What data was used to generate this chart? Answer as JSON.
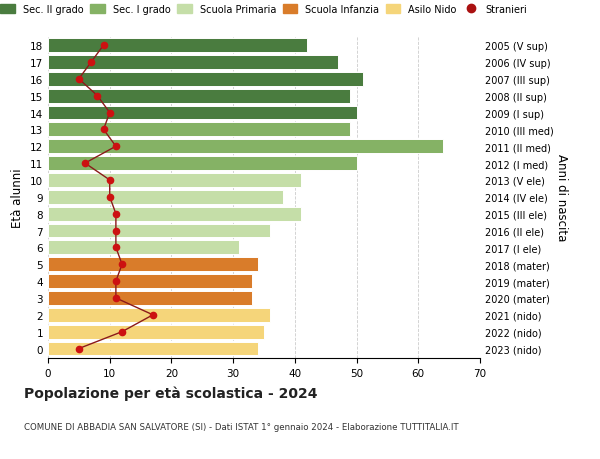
{
  "ages": [
    18,
    17,
    16,
    15,
    14,
    13,
    12,
    11,
    10,
    9,
    8,
    7,
    6,
    5,
    4,
    3,
    2,
    1,
    0
  ],
  "bar_values": [
    42,
    47,
    51,
    49,
    50,
    49,
    64,
    50,
    41,
    38,
    41,
    36,
    31,
    34,
    33,
    33,
    36,
    35,
    34
  ],
  "bar_colors": [
    "#4a7c3f",
    "#4a7c3f",
    "#4a7c3f",
    "#4a7c3f",
    "#4a7c3f",
    "#85b265",
    "#85b265",
    "#85b265",
    "#c5dea8",
    "#c5dea8",
    "#c5dea8",
    "#c5dea8",
    "#c5dea8",
    "#d97c2a",
    "#d97c2a",
    "#d97c2a",
    "#f5d57a",
    "#f5d57a",
    "#f5d57a"
  ],
  "stranieri_values": [
    9,
    7,
    5,
    8,
    10,
    9,
    11,
    6,
    10,
    10,
    11,
    11,
    11,
    12,
    11,
    11,
    17,
    12,
    5
  ],
  "right_labels": [
    "2005 (V sup)",
    "2006 (IV sup)",
    "2007 (III sup)",
    "2008 (II sup)",
    "2009 (I sup)",
    "2010 (III med)",
    "2011 (II med)",
    "2012 (I med)",
    "2013 (V ele)",
    "2014 (IV ele)",
    "2015 (III ele)",
    "2016 (II ele)",
    "2017 (I ele)",
    "2018 (mater)",
    "2019 (mater)",
    "2020 (mater)",
    "2021 (nido)",
    "2022 (nido)",
    "2023 (nido)"
  ],
  "ylabel": "Età alunni",
  "right_ylabel": "Anni di nascita",
  "title": "Popolazione per età scolastica - 2024",
  "subtitle": "COMUNE DI ABBADIA SAN SALVATORE (SI) - Dati ISTAT 1° gennaio 2024 - Elaborazione TUTTITALIA.IT",
  "legend_labels": [
    "Sec. II grado",
    "Sec. I grado",
    "Scuola Primaria",
    "Scuola Infanzia",
    "Asilo Nido",
    "Stranieri"
  ],
  "legend_colors": [
    "#4a7c3f",
    "#85b265",
    "#c5dea8",
    "#d97c2a",
    "#f5d57a",
    "#aa1111"
  ],
  "xlim": [
    0,
    70
  ],
  "xticks": [
    0,
    10,
    20,
    30,
    40,
    50,
    60,
    70
  ],
  "bg_color": "#ffffff",
  "grid_color": "#cccccc",
  "stranieri_line_color": "#8b1a1a",
  "stranieri_marker_color": "#cc1111"
}
